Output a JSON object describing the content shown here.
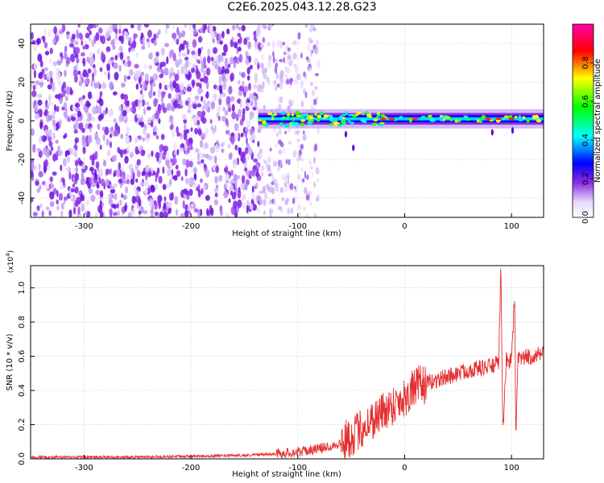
{
  "title": "C2E6.2025.043.12.28.G23",
  "chart_data": [
    {
      "type": "heatmap",
      "xlabel": "Height of straight line (km)",
      "ylabel": "Frequency (Hz)",
      "xlim": [
        -350,
        130
      ],
      "ylim": [
        -50,
        50
      ],
      "xticks": [
        -300,
        -200,
        -100,
        0,
        100
      ],
      "yticks": [
        -40,
        -20,
        0,
        20,
        40
      ],
      "grid": true,
      "colorbar": {
        "label": "Normalized spectral amplitude",
        "ticks": [
          0.0,
          0.2,
          0.4,
          0.6,
          0.8
        ],
        "tick_labels": [
          "0.0",
          "0.2",
          "0.4",
          "0.6",
          "0.8"
        ],
        "range": [
          0,
          1
        ],
        "colormap": [
          "#ffffff",
          "#8a2be2",
          "#0000ff",
          "#00ffff",
          "#00ff00",
          "#ffff00",
          "#ff0000",
          "#ff00aa"
        ]
      },
      "signal_track": {
        "x_start": -137,
        "x_end": 130,
        "frequency_center": 1,
        "frequency_halfwidth": 3
      },
      "noise_region": {
        "x_start": -350,
        "x_end": -135,
        "sparse_until": -80
      }
    },
    {
      "type": "line",
      "xlabel": "Height of straight line (km)",
      "ylabel": "SNR (10 * v/v)",
      "y_multiplier_label": "(x10",
      "y_multiplier_exp": "4",
      "xlim": [
        -350,
        130
      ],
      "ylim": [
        0,
        1.13
      ],
      "xticks": [
        -300,
        -200,
        -100,
        0,
        100
      ],
      "yticks": [
        0.0,
        0.2,
        0.4,
        0.6,
        0.8,
        1.0
      ],
      "ytick_labels": [
        "0.0",
        "0.2",
        "0.4",
        "0.6",
        "0.8",
        "1.0"
      ],
      "grid": true,
      "line_color": "#e53030",
      "series": [
        {
          "x": [
            -350,
            -300,
            -250,
            -200,
            -150,
            -120,
            -100,
            -80,
            -60,
            -50,
            -40,
            -30,
            -20,
            -10,
            0,
            10,
            20,
            30,
            40,
            50,
            60,
            70,
            80,
            85,
            88,
            90,
            92,
            95,
            100,
            103,
            104,
            106,
            110,
            120,
            130
          ],
          "values": [
            0.01,
            0.01,
            0.01,
            0.015,
            0.02,
            0.03,
            0.04,
            0.06,
            0.09,
            0.13,
            0.18,
            0.23,
            0.28,
            0.32,
            0.36,
            0.42,
            0.44,
            0.46,
            0.48,
            0.5,
            0.52,
            0.53,
            0.54,
            0.55,
            0.56,
            1.12,
            0.15,
            0.57,
            0.58,
            0.97,
            0.08,
            0.58,
            0.59,
            0.6,
            0.61
          ]
        }
      ]
    }
  ]
}
